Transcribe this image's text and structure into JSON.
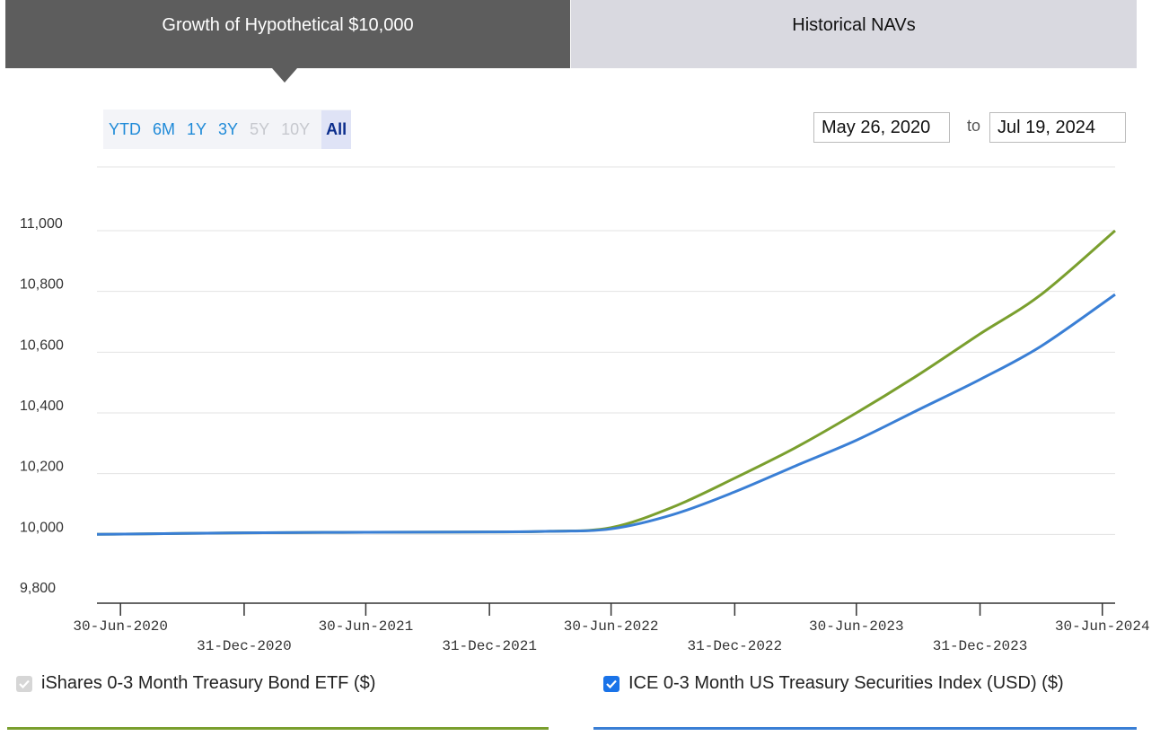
{
  "tabs": {
    "active_label": "Growth of Hypothetical $10,000",
    "inactive_label": "Historical NAVs"
  },
  "range_buttons": [
    {
      "label": "YTD",
      "state": "enabled"
    },
    {
      "label": "6M",
      "state": "enabled"
    },
    {
      "label": "1Y",
      "state": "enabled"
    },
    {
      "label": "3Y",
      "state": "enabled"
    },
    {
      "label": "5Y",
      "state": "disabled"
    },
    {
      "label": "10Y",
      "state": "disabled"
    },
    {
      "label": "All",
      "state": "selected"
    }
  ],
  "date_range": {
    "from": "May 26, 2020",
    "separator": "to",
    "to": "Jul 19, 2024"
  },
  "legend": {
    "etf_label": "iShares 0-3 Month Treasury Bond ETF ($)",
    "index_label": "ICE 0-3 Month US Treasury Securities Index (USD) ($)"
  },
  "colors": {
    "etf": "#7a9f2e",
    "index": "#3a7fd5",
    "grid": "#e3e3e3",
    "axis": "#333333"
  },
  "chart_data": {
    "type": "line",
    "title": "Growth of Hypothetical $10,000",
    "xlabel": "",
    "ylabel": "",
    "ylim": [
      9800,
      11000
    ],
    "yticks": [
      {
        "value": 9800,
        "label": "9,800"
      },
      {
        "value": 10000,
        "label": "10,000"
      },
      {
        "value": 10200,
        "label": "10,200"
      },
      {
        "value": 10400,
        "label": "10,400"
      },
      {
        "value": 10600,
        "label": "10,600"
      },
      {
        "value": 10800,
        "label": "10,800"
      },
      {
        "value": 11000,
        "label": "11,000"
      }
    ],
    "xticks": [
      {
        "date": "2020-06-30",
        "label": "30-Jun-2020",
        "row": 0
      },
      {
        "date": "2020-12-31",
        "label": "31-Dec-2020",
        "row": 1
      },
      {
        "date": "2021-06-30",
        "label": "30-Jun-2021",
        "row": 0
      },
      {
        "date": "2021-12-31",
        "label": "31-Dec-2021",
        "row": 1
      },
      {
        "date": "2022-06-30",
        "label": "30-Jun-2022",
        "row": 0
      },
      {
        "date": "2022-12-31",
        "label": "31-Dec-2022",
        "row": 1
      },
      {
        "date": "2023-06-30",
        "label": "30-Jun-2023",
        "row": 0
      },
      {
        "date": "2023-12-31",
        "label": "31-Dec-2023",
        "row": 1
      },
      {
        "date": "2024-06-30",
        "label": "30-Jun-2024",
        "row": 0
      }
    ],
    "xrange": [
      "2020-05-26",
      "2024-07-19"
    ],
    "series": [
      {
        "name": "iShares 0-3 Month Treasury Bond ETF ($)",
        "color": "#7a9f2e",
        "points": [
          [
            "2020-05-26",
            10000
          ],
          [
            "2020-09-30",
            10003
          ],
          [
            "2020-12-31",
            10005
          ],
          [
            "2021-06-30",
            10007
          ],
          [
            "2021-12-31",
            10008
          ],
          [
            "2022-03-31",
            10010
          ],
          [
            "2022-06-30",
            10022
          ],
          [
            "2022-09-30",
            10090
          ],
          [
            "2022-12-31",
            10185
          ],
          [
            "2023-03-31",
            10285
          ],
          [
            "2023-06-30",
            10400
          ],
          [
            "2023-09-30",
            10525
          ],
          [
            "2023-12-31",
            10660
          ],
          [
            "2024-03-31",
            10790
          ],
          [
            "2024-07-19",
            11000
          ]
        ]
      },
      {
        "name": "ICE 0-3 Month US Treasury Securities Index (USD) ($)",
        "color": "#3a7fd5",
        "points": [
          [
            "2020-05-26",
            10000
          ],
          [
            "2020-09-30",
            10003
          ],
          [
            "2020-12-31",
            10005
          ],
          [
            "2021-06-30",
            10007
          ],
          [
            "2021-12-31",
            10008
          ],
          [
            "2022-03-31",
            10010
          ],
          [
            "2022-06-30",
            10018
          ],
          [
            "2022-09-30",
            10065
          ],
          [
            "2022-12-31",
            10140
          ],
          [
            "2023-03-31",
            10225
          ],
          [
            "2023-06-30",
            10310
          ],
          [
            "2023-09-30",
            10410
          ],
          [
            "2023-12-31",
            10510
          ],
          [
            "2024-03-31",
            10620
          ],
          [
            "2024-07-19",
            10790
          ]
        ]
      }
    ],
    "legend_position": "bottom"
  }
}
